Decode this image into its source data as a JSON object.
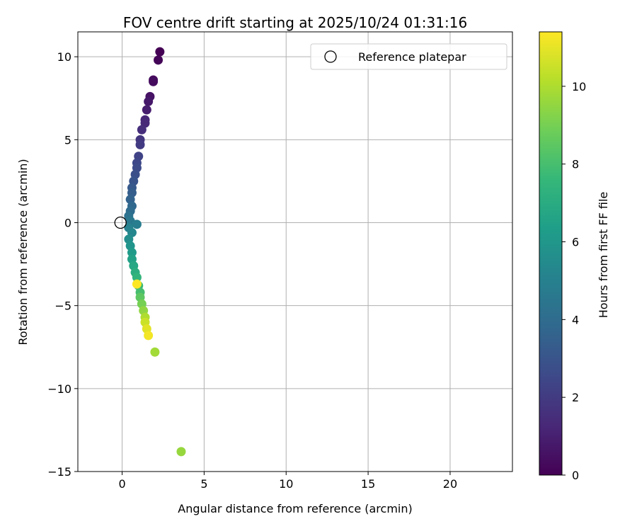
{
  "chart_data": {
    "type": "scatter",
    "title": "FOV centre drift starting at 2025/10/24 01:31:16",
    "xlabel": "Angular distance from reference (arcmin)",
    "ylabel": "Rotation from reference (arcmin)",
    "xlim": [
      -2.7,
      23.8
    ],
    "ylim": [
      -15,
      11.5
    ],
    "xticks": [
      0,
      5,
      10,
      15,
      20
    ],
    "yticks": [
      -15,
      -10,
      -5,
      0,
      5,
      10
    ],
    "xtick_labels": [
      "0",
      "5",
      "10",
      "15",
      "20"
    ],
    "ytick_labels": [
      "−15",
      "−10",
      "−5",
      "0",
      "5",
      "10"
    ],
    "grid": true,
    "legend": {
      "position": "top-right",
      "entries": [
        "Reference platepar"
      ]
    },
    "reference_point": {
      "x": -0.1,
      "y": 0.0,
      "label": "Reference platepar"
    },
    "colorbar": {
      "label": "Hours from first FF file",
      "min": 0,
      "max": 11.4,
      "ticks": [
        0,
        2,
        4,
        6,
        8,
        10
      ],
      "tick_labels": [
        "0",
        "2",
        "4",
        "6",
        "8",
        "10"
      ],
      "colormap": [
        "#440154",
        "#482878",
        "#3e4989",
        "#31688e",
        "#26828e",
        "#1f9e89",
        "#35b779",
        "#6ece58",
        "#b5de2b",
        "#fde725"
      ]
    },
    "points": [
      {
        "x": 2.3,
        "y": 10.3,
        "t": 0.0
      },
      {
        "x": 2.2,
        "y": 9.8,
        "t": 0.1
      },
      {
        "x": 1.9,
        "y": 8.6,
        "t": 0.3
      },
      {
        "x": 1.9,
        "y": 8.5,
        "t": 0.35
      },
      {
        "x": 1.7,
        "y": 7.6,
        "t": 0.6
      },
      {
        "x": 1.6,
        "y": 7.3,
        "t": 0.75
      },
      {
        "x": 1.5,
        "y": 6.8,
        "t": 0.9
      },
      {
        "x": 1.4,
        "y": 6.2,
        "t": 1.2
      },
      {
        "x": 1.4,
        "y": 6.0,
        "t": 1.3
      },
      {
        "x": 1.2,
        "y": 5.6,
        "t": 1.5
      },
      {
        "x": 1.1,
        "y": 5.0,
        "t": 1.8
      },
      {
        "x": 1.1,
        "y": 4.7,
        "t": 2.0
      },
      {
        "x": 1.0,
        "y": 4.0,
        "t": 2.3
      },
      {
        "x": 0.9,
        "y": 3.6,
        "t": 2.5
      },
      {
        "x": 0.9,
        "y": 3.3,
        "t": 2.6
      },
      {
        "x": 0.8,
        "y": 2.9,
        "t": 2.8
      },
      {
        "x": 0.7,
        "y": 2.5,
        "t": 3.0
      },
      {
        "x": 0.6,
        "y": 2.1,
        "t": 3.2
      },
      {
        "x": 0.6,
        "y": 1.8,
        "t": 3.4
      },
      {
        "x": 0.5,
        "y": 1.4,
        "t": 3.6
      },
      {
        "x": 0.6,
        "y": 1.0,
        "t": 3.8
      },
      {
        "x": 0.5,
        "y": 0.7,
        "t": 4.0
      },
      {
        "x": 0.4,
        "y": 0.4,
        "t": 4.3
      },
      {
        "x": 0.5,
        "y": 0.1,
        "t": 4.6
      },
      {
        "x": 0.9,
        "y": -0.1,
        "t": 4.8
      },
      {
        "x": 0.4,
        "y": -0.3,
        "t": 5.0
      },
      {
        "x": 0.6,
        "y": -0.6,
        "t": 5.3
      },
      {
        "x": 0.4,
        "y": -1.0,
        "t": 5.6
      },
      {
        "x": 0.5,
        "y": -1.4,
        "t": 5.9
      },
      {
        "x": 0.6,
        "y": -1.8,
        "t": 6.2
      },
      {
        "x": 0.6,
        "y": -2.2,
        "t": 6.5
      },
      {
        "x": 0.7,
        "y": -2.6,
        "t": 6.8
      },
      {
        "x": 0.8,
        "y": -3.0,
        "t": 7.1
      },
      {
        "x": 0.9,
        "y": -3.3,
        "t": 7.4
      },
      {
        "x": 1.0,
        "y": -3.8,
        "t": 7.7
      },
      {
        "x": 1.1,
        "y": -4.2,
        "t": 8.0
      },
      {
        "x": 1.1,
        "y": -4.5,
        "t": 8.5
      },
      {
        "x": 1.2,
        "y": -4.9,
        "t": 9.0
      },
      {
        "x": 1.3,
        "y": -5.3,
        "t": 9.5
      },
      {
        "x": 1.4,
        "y": -5.7,
        "t": 10.0
      },
      {
        "x": 1.4,
        "y": -6.0,
        "t": 10.5
      },
      {
        "x": 1.5,
        "y": -6.4,
        "t": 10.9
      },
      {
        "x": 1.6,
        "y": -6.8,
        "t": 11.2
      },
      {
        "x": 0.9,
        "y": -3.7,
        "t": 11.4
      },
      {
        "x": 2.0,
        "y": -7.8,
        "t": 9.8
      },
      {
        "x": 3.6,
        "y": -13.8,
        "t": 9.6
      }
    ]
  }
}
